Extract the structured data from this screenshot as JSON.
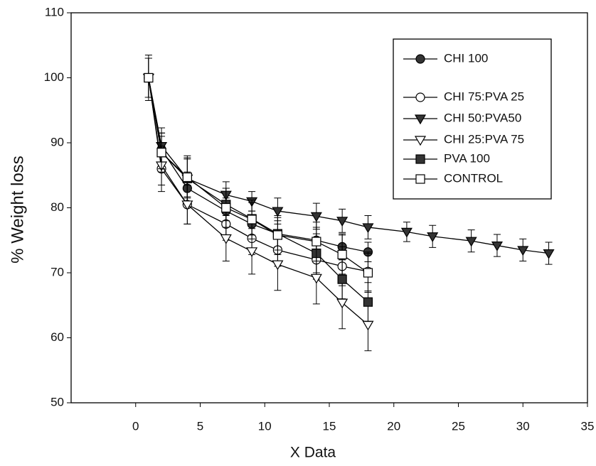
{
  "chart_data": {
    "type": "line",
    "xlabel": "X Data",
    "ylabel": "% Weight loss",
    "xlim": [
      -5,
      35
    ],
    "xticks": [
      0,
      5,
      10,
      15,
      20,
      25,
      30,
      35
    ],
    "ylim": [
      50,
      110
    ],
    "yticks": [
      50,
      60,
      70,
      80,
      90,
      100,
      110
    ],
    "legend": "upper right",
    "series": [
      {
        "name": "CHI 100",
        "color": "#000000",
        "marker": "circle-filled",
        "x": [
          1,
          2,
          4,
          7,
          9,
          11,
          14,
          16,
          18
        ],
        "values": [
          100,
          89,
          83,
          79.5,
          77.5,
          76,
          75,
          74,
          73.2
        ],
        "errors": [
          3,
          2.5,
          2.5,
          2,
          2,
          2,
          2,
          2,
          1.5
        ]
      },
      {
        "name": "CHI 75:PVA 25",
        "color": "#000000",
        "marker": "circle-open",
        "x": [
          1,
          2,
          4,
          7,
          9,
          11,
          14,
          16,
          18
        ],
        "values": [
          100,
          86,
          80.5,
          77.5,
          75.3,
          73.5,
          72,
          71,
          70.2
        ],
        "errors": [
          3,
          3.5,
          3,
          2.5,
          2.5,
          2.5,
          3,
          3,
          3
        ]
      },
      {
        "name": "CHI 50:PVA50",
        "color": "#000000",
        "marker": "tri-filled",
        "x": [
          1,
          2,
          4,
          7,
          9,
          11,
          14,
          16,
          18,
          21,
          23,
          26,
          28,
          30,
          32
        ],
        "values": [
          100,
          89.5,
          84.5,
          82,
          81,
          79.5,
          78.7,
          78,
          77,
          76.3,
          75.6,
          74.9,
          74.2,
          73.5,
          73
        ],
        "errors": [
          3.5,
          2.8,
          3.5,
          2,
          1.5,
          2,
          2,
          1.8,
          1.8,
          1.5,
          1.7,
          1.7,
          1.7,
          1.7,
          1.7
        ]
      },
      {
        "name": "CHI 25:PVA 75",
        "color": "#000000",
        "marker": "tri-open",
        "x": [
          1,
          2,
          4,
          7,
          9,
          11,
          14,
          16,
          18
        ],
        "values": [
          100,
          86.5,
          80.5,
          75.3,
          73.3,
          71.3,
          69.2,
          65.4,
          62
        ],
        "errors": [
          3,
          3,
          3,
          3.5,
          3.5,
          4,
          4,
          4,
          4
        ]
      },
      {
        "name": "PVA 100",
        "color": "#000000",
        "marker": "square-filled",
        "x": [
          1,
          2,
          4,
          7,
          9,
          11,
          14,
          16,
          18
        ],
        "values": [
          100,
          88.5,
          84.5,
          80.5,
          78.3,
          76,
          73,
          69,
          65.5
        ],
        "errors": [
          3,
          2.5,
          3,
          2.5,
          2.5,
          2.5,
          3,
          3,
          3
        ]
      },
      {
        "name": "CONTROL",
        "color": "#000000",
        "marker": "square-open",
        "x": [
          1,
          2,
          4,
          7,
          9,
          11,
          14,
          16,
          18
        ],
        "values": [
          100,
          88.5,
          84.7,
          80,
          78.2,
          75.8,
          74.8,
          72.8,
          70
        ],
        "errors": [
          3,
          3,
          3,
          3,
          3,
          3,
          3,
          3,
          3
        ]
      }
    ]
  }
}
